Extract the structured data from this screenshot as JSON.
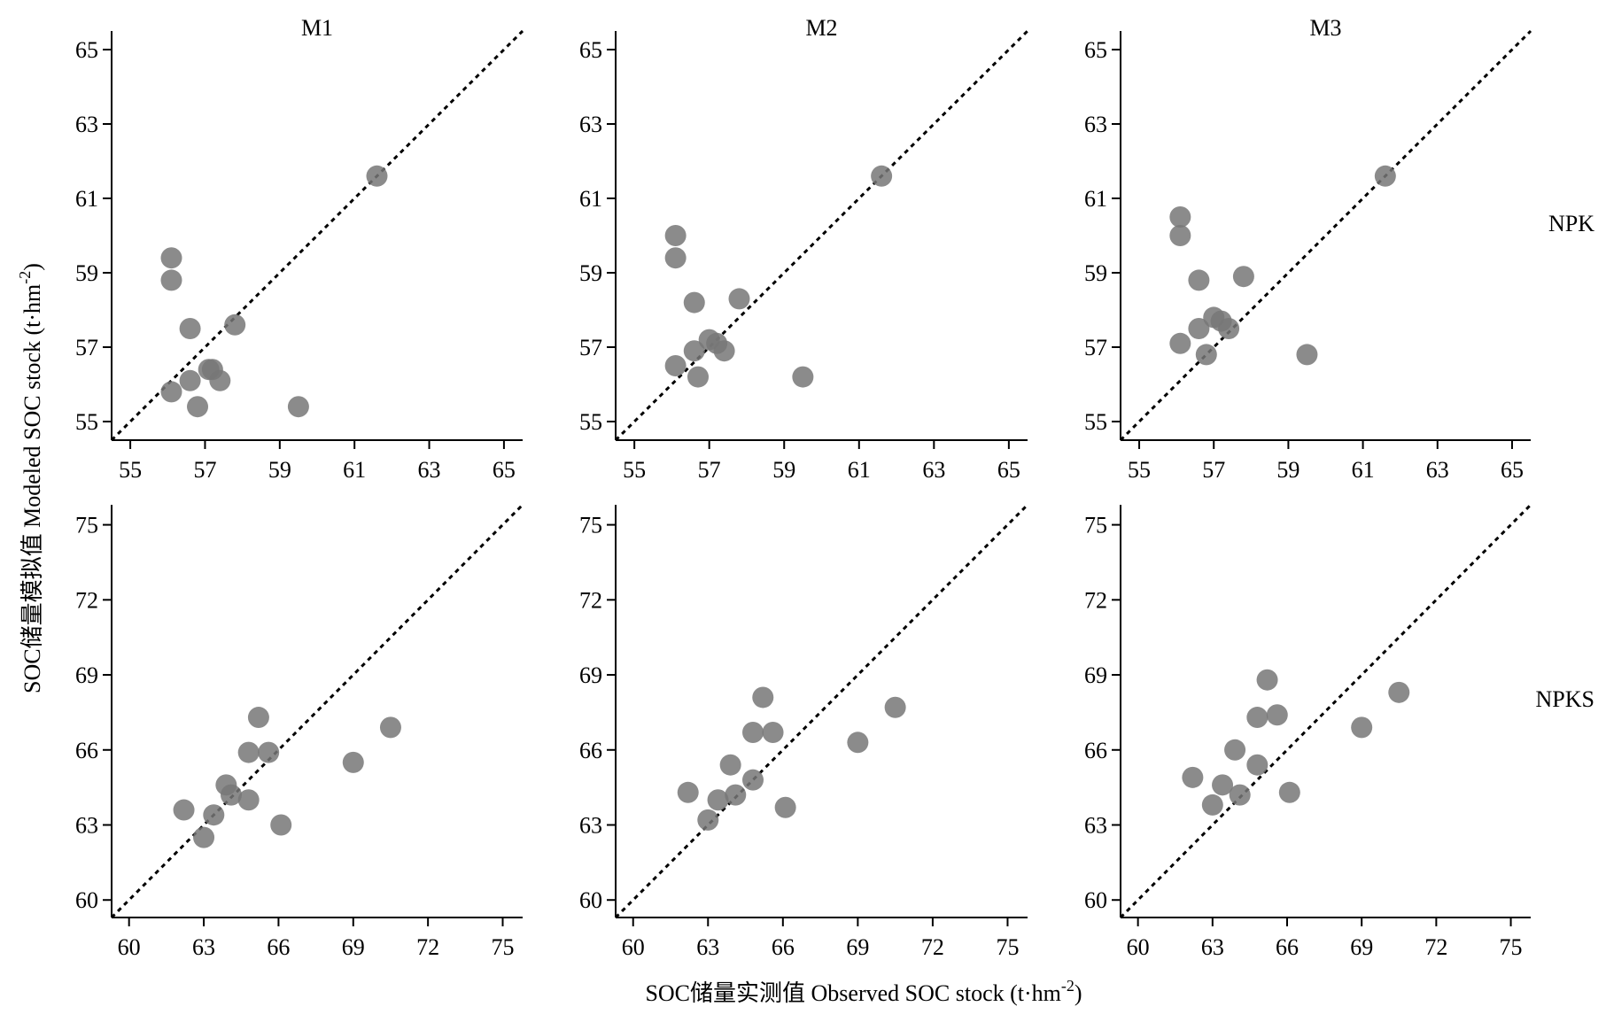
{
  "figure": {
    "xlabel": "SOC储量实测值 Observed SOC stock (t·hm",
    "xlabel_sup": "-2",
    "xlabel_end": ")",
    "ylabel": "SOC储量模拟值 Modeled SOC stock (t·hm",
    "ylabel_sup": "-2",
    "ylabel_end": ")",
    "point_color": "#777777",
    "line_color": "#000000"
  },
  "chart_data": [
    {
      "type": "scatter",
      "row_label": "NPK",
      "title": "M1",
      "xlim": [
        54.5,
        65.5
      ],
      "ylim": [
        54.5,
        65.5
      ],
      "ticks": [
        55,
        57,
        59,
        61,
        63,
        65
      ],
      "reference_line": "1:1",
      "points": [
        [
          56.1,
          59.4
        ],
        [
          56.1,
          58.8
        ],
        [
          56.6,
          57.5
        ],
        [
          57.8,
          57.6
        ],
        [
          57.1,
          56.4
        ],
        [
          57.2,
          56.4
        ],
        [
          56.6,
          56.1
        ],
        [
          57.4,
          56.1
        ],
        [
          56.1,
          55.8
        ],
        [
          56.8,
          55.4
        ],
        [
          59.5,
          55.4
        ],
        [
          61.6,
          61.6
        ]
      ]
    },
    {
      "type": "scatter",
      "row_label": "NPK",
      "title": "M2",
      "xlim": [
        54.5,
        65.5
      ],
      "ylim": [
        54.5,
        65.5
      ],
      "ticks": [
        55,
        57,
        59,
        61,
        63,
        65
      ],
      "reference_line": "1:1",
      "points": [
        [
          56.1,
          60.0
        ],
        [
          56.1,
          59.4
        ],
        [
          56.6,
          58.2
        ],
        [
          57.8,
          58.3
        ],
        [
          57.0,
          57.2
        ],
        [
          57.2,
          57.1
        ],
        [
          56.6,
          56.9
        ],
        [
          57.4,
          56.9
        ],
        [
          56.1,
          56.5
        ],
        [
          56.7,
          56.2
        ],
        [
          59.5,
          56.2
        ],
        [
          61.6,
          61.6
        ]
      ]
    },
    {
      "type": "scatter",
      "row_label": "NPK",
      "title": "M3",
      "xlim": [
        54.5,
        65.5
      ],
      "ylim": [
        54.5,
        65.5
      ],
      "ticks": [
        55,
        57,
        59,
        61,
        63,
        65
      ],
      "reference_line": "1:1",
      "points": [
        [
          56.1,
          60.5
        ],
        [
          56.1,
          60.0
        ],
        [
          56.6,
          58.8
        ],
        [
          57.8,
          58.9
        ],
        [
          57.0,
          57.8
        ],
        [
          57.2,
          57.7
        ],
        [
          56.6,
          57.5
        ],
        [
          57.4,
          57.5
        ],
        [
          56.1,
          57.1
        ],
        [
          56.8,
          56.8
        ],
        [
          59.5,
          56.8
        ],
        [
          61.6,
          61.6
        ]
      ]
    },
    {
      "type": "scatter",
      "row_label": "NPKS",
      "title": "",
      "xlim": [
        59.3,
        75.8
      ],
      "ylim": [
        59.3,
        75.8
      ],
      "ticks": [
        60,
        63,
        66,
        69,
        72,
        75
      ],
      "reference_line": "1:1",
      "points": [
        [
          62.2,
          63.6
        ],
        [
          63.0,
          62.5
        ],
        [
          63.4,
          63.4
        ],
        [
          63.9,
          64.6
        ],
        [
          64.1,
          64.2
        ],
        [
          64.8,
          64.0
        ],
        [
          64.8,
          65.9
        ],
        [
          65.2,
          67.3
        ],
        [
          65.6,
          65.9
        ],
        [
          66.1,
          63.0
        ],
        [
          69.0,
          65.5
        ],
        [
          70.5,
          66.9
        ]
      ]
    },
    {
      "type": "scatter",
      "row_label": "NPKS",
      "title": "",
      "xlim": [
        59.3,
        75.8
      ],
      "ylim": [
        59.3,
        75.8
      ],
      "ticks": [
        60,
        63,
        66,
        69,
        72,
        75
      ],
      "reference_line": "1:1",
      "points": [
        [
          62.2,
          64.3
        ],
        [
          63.0,
          63.2
        ],
        [
          63.4,
          64.0
        ],
        [
          63.9,
          65.4
        ],
        [
          64.1,
          64.2
        ],
        [
          64.8,
          64.8
        ],
        [
          64.8,
          66.7
        ],
        [
          65.2,
          68.1
        ],
        [
          65.6,
          66.7
        ],
        [
          66.1,
          63.7
        ],
        [
          69.0,
          66.3
        ],
        [
          70.5,
          67.7
        ]
      ]
    },
    {
      "type": "scatter",
      "row_label": "NPKS",
      "title": "",
      "xlim": [
        59.3,
        75.8
      ],
      "ylim": [
        59.3,
        75.8
      ],
      "ticks": [
        60,
        63,
        66,
        69,
        72,
        75
      ],
      "reference_line": "1:1",
      "points": [
        [
          62.2,
          64.9
        ],
        [
          63.0,
          63.8
        ],
        [
          63.4,
          64.6
        ],
        [
          63.9,
          66.0
        ],
        [
          64.1,
          64.2
        ],
        [
          64.8,
          65.4
        ],
        [
          64.8,
          67.3
        ],
        [
          65.2,
          68.8
        ],
        [
          65.6,
          67.4
        ],
        [
          66.1,
          64.3
        ],
        [
          69.0,
          66.9
        ],
        [
          70.5,
          68.3
        ]
      ]
    }
  ]
}
